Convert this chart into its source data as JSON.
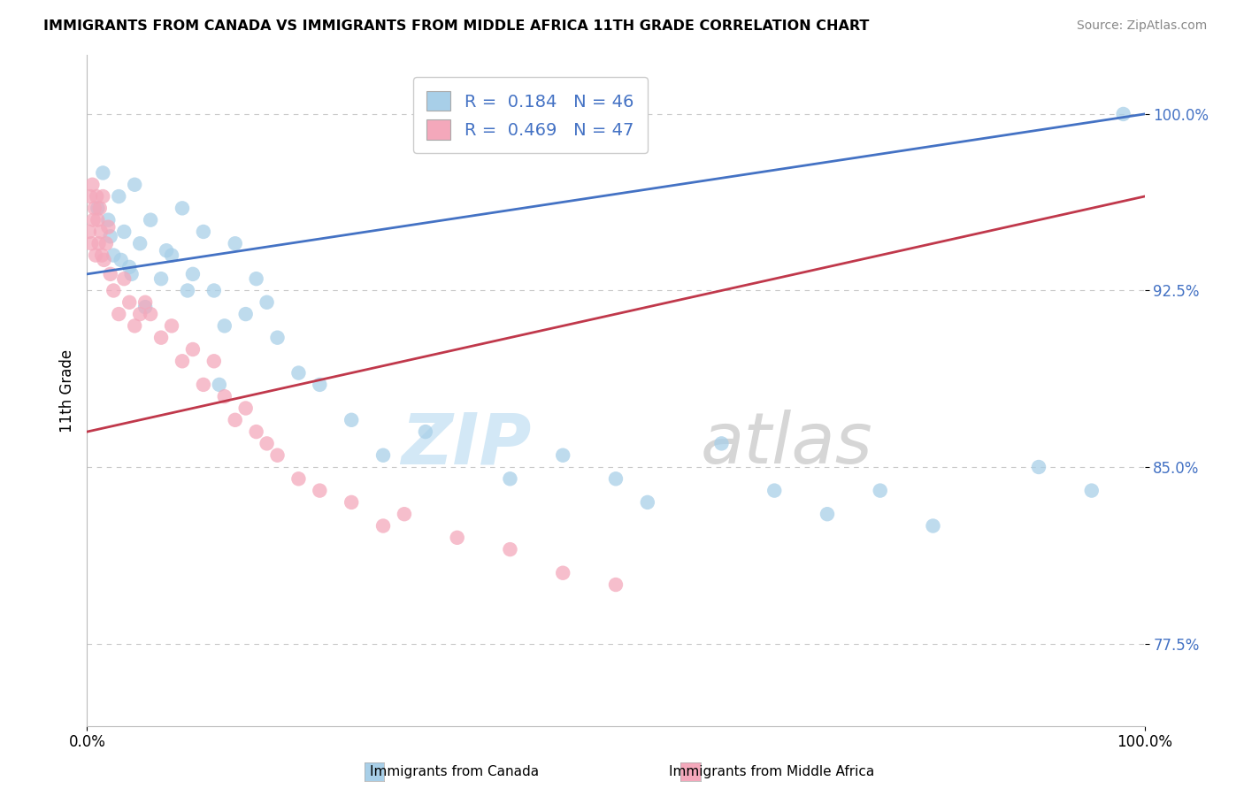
{
  "title": "IMMIGRANTS FROM CANADA VS IMMIGRANTS FROM MIDDLE AFRICA 11TH GRADE CORRELATION CHART",
  "source": "Source: ZipAtlas.com",
  "legend_blue_label": "Immigrants from Canada",
  "legend_pink_label": "Immigrants from Middle Africa",
  "ylabel": "11th Grade",
  "r_blue": 0.184,
  "n_blue": 46,
  "r_pink": 0.469,
  "n_pink": 47,
  "blue_color": "#a8cfe8",
  "pink_color": "#f4a8bb",
  "blue_line_color": "#4472c4",
  "pink_line_color": "#c0384b",
  "xmin": 0.0,
  "xmax": 100.0,
  "ymin": 74.0,
  "ymax": 102.5,
  "ytick_values": [
    77.5,
    85.0,
    92.5,
    100.0
  ],
  "ytick_labels": [
    "77.5%",
    "85.0%",
    "92.5%",
    "100.0%"
  ],
  "grid_color": "#c8c8c8",
  "blue_line_x0": 0.0,
  "blue_line_y0": 93.2,
  "blue_line_x1": 100.0,
  "blue_line_y1": 100.0,
  "pink_line_x0": 0.0,
  "pink_line_y0": 86.5,
  "pink_line_x1": 100.0,
  "pink_line_y1": 96.5,
  "blue_x": [
    1.0,
    1.5,
    2.0,
    2.5,
    3.0,
    3.5,
    4.0,
    4.5,
    5.0,
    6.0,
    7.0,
    8.0,
    9.0,
    10.0,
    11.0,
    12.0,
    13.0,
    14.0,
    15.0,
    16.0,
    17.0,
    18.0,
    20.0,
    22.0,
    25.0,
    28.0,
    32.0,
    40.0,
    45.0,
    50.0,
    53.0,
    60.0,
    65.0,
    70.0,
    75.0,
    80.0,
    90.0,
    95.0,
    98.0,
    2.2,
    3.2,
    4.2,
    5.5,
    7.5,
    9.5,
    12.5
  ],
  "blue_y": [
    96.0,
    97.5,
    95.5,
    94.0,
    96.5,
    95.0,
    93.5,
    97.0,
    94.5,
    95.5,
    93.0,
    94.0,
    96.0,
    93.2,
    95.0,
    92.5,
    91.0,
    94.5,
    91.5,
    93.0,
    92.0,
    90.5,
    89.0,
    88.5,
    87.0,
    85.5,
    86.5,
    84.5,
    85.5,
    84.5,
    83.5,
    86.0,
    84.0,
    83.0,
    84.0,
    82.5,
    85.0,
    84.0,
    100.0,
    94.8,
    93.8,
    93.2,
    91.8,
    94.2,
    92.5,
    88.5
  ],
  "pink_x": [
    0.2,
    0.3,
    0.4,
    0.5,
    0.6,
    0.7,
    0.8,
    0.9,
    1.0,
    1.1,
    1.2,
    1.3,
    1.4,
    1.5,
    1.6,
    1.8,
    2.0,
    2.2,
    2.5,
    3.0,
    3.5,
    4.0,
    4.5,
    5.0,
    5.5,
    6.0,
    7.0,
    8.0,
    9.0,
    10.0,
    11.0,
    12.0,
    13.0,
    14.0,
    15.0,
    16.0,
    17.0,
    18.0,
    20.0,
    22.0,
    25.0,
    28.0,
    30.0,
    35.0,
    40.0,
    45.0,
    50.0
  ],
  "pink_y": [
    95.0,
    96.5,
    94.5,
    97.0,
    95.5,
    96.0,
    94.0,
    96.5,
    95.5,
    94.5,
    96.0,
    95.0,
    94.0,
    96.5,
    93.8,
    94.5,
    95.2,
    93.2,
    92.5,
    91.5,
    93.0,
    92.0,
    91.0,
    91.5,
    92.0,
    91.5,
    90.5,
    91.0,
    89.5,
    90.0,
    88.5,
    89.5,
    88.0,
    87.0,
    87.5,
    86.5,
    86.0,
    85.5,
    84.5,
    84.0,
    83.5,
    82.5,
    83.0,
    82.0,
    81.5,
    80.5,
    80.0
  ]
}
